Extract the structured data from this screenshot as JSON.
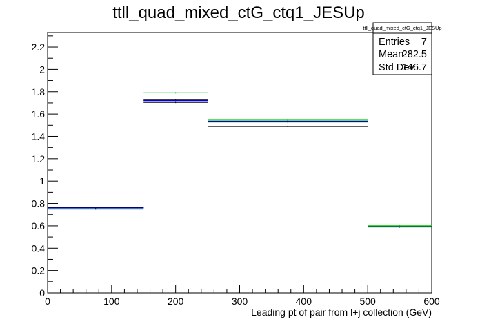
{
  "chart_data": {
    "type": "histogram",
    "title": "ttll_quad_mixed_ctG_ctq1_JESUp",
    "xlabel": "Leading pt of pair from l+j collection (GeV)",
    "ylabel": "",
    "xlim": [
      0,
      600
    ],
    "ylim": [
      0,
      2.33
    ],
    "x_ticks": [
      0,
      100,
      200,
      300,
      400,
      500,
      600
    ],
    "y_ticks": [
      0,
      0.2,
      0.4,
      0.6,
      0.8,
      1,
      1.2,
      1.4,
      1.6,
      1.8,
      2,
      2.2
    ],
    "grid": false,
    "bin_edges": [
      0,
      150,
      250,
      500,
      600
    ],
    "series": [
      {
        "color": "#000000",
        "values": [
          0.762,
          1.725,
          1.49,
          0.593
        ]
      },
      {
        "color": "#000000",
        "values": [
          0.762,
          1.705,
          1.53,
          0.593
        ]
      },
      {
        "color": "#00cc00",
        "values": [
          0.75,
          1.79,
          1.545,
          0.6
        ]
      },
      {
        "color": "#0000cc",
        "values": [
          0.76,
          1.72,
          1.535,
          0.59
        ]
      }
    ],
    "stats_box": {
      "title": "ttll_quad_mixed_ctG_ctq1_JESUp",
      "entries_label": "Entries",
      "entries": "7",
      "mean_label": "Mean",
      "mean": "282.5",
      "stddev_label": "Std Dev",
      "stddev": "146.7"
    }
  }
}
